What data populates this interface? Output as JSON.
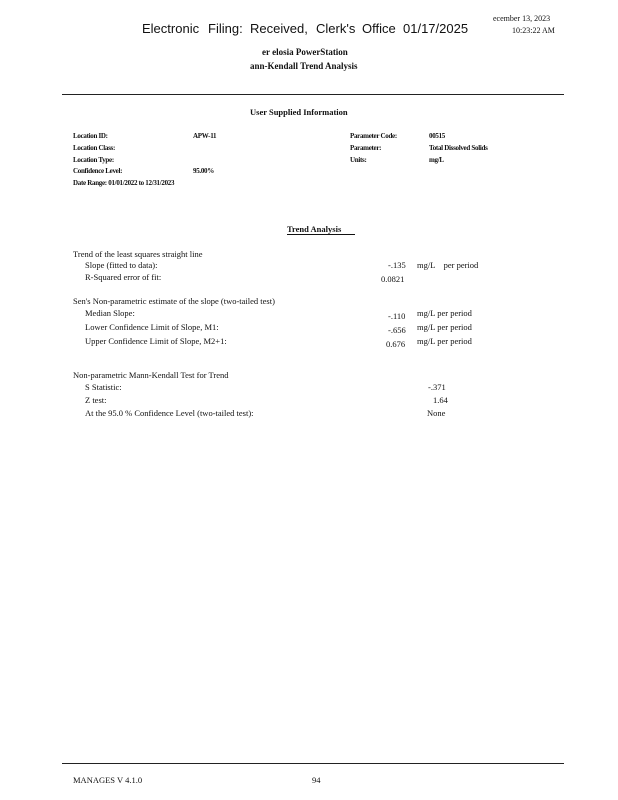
{
  "stamp": {
    "words": [
      "Electronic",
      "Filing:",
      "Received,",
      "Clerk's",
      "Office",
      "01/17/2025"
    ]
  },
  "header": {
    "date": "ecember 13, 2023",
    "time": "10:23:22 AM",
    "title1": "er     elosia PowerStation",
    "title2": "ann-Kendall Trend Analysis"
  },
  "user_info": {
    "heading": "User Supplied Information",
    "location_id_label": "Location ID:",
    "location_id": "APW-11",
    "location_class_label": "Location Class:",
    "location_type_label": "Location Type:",
    "confidence_label": "Confidence Level:",
    "confidence": "95.00%",
    "date_range": "Date Range: 01/01/2022 to 12/31/2023",
    "param_code_label": "Parameter Code:",
    "param_code": "00515",
    "parameter_label": "Parameter:",
    "parameter": "Total Dissolved Solids",
    "units_label": "Units:",
    "units": "mg/L"
  },
  "trend": {
    "heading": "Trend Analysis",
    "ls_title": "Trend of the least squares straight line",
    "slope_label": "Slope (fitted to data):",
    "slope": "-.135",
    "slope_unit": "mg/L    per period",
    "r2_label": "R-Squared error of fit:",
    "r2": "0.0821",
    "sen_title": "Sen's Non-parametric estimate of the slope (two-tailed test)",
    "median_label": "Median Slope:",
    "median": "-.110",
    "median_unit": "mg/L per period",
    "lcl_label": "Lower Confidence Limit of Slope, M1:",
    "lcl": "-.656",
    "lcl_unit": "mg/L per period",
    "ucl_label": "Upper Confidence Limit of Slope, M2+1:",
    "ucl": "0.676",
    "ucl_unit": "mg/L per period",
    "mk_title": "Non-parametric Mann-Kendall Test for Trend",
    "s_label": "S Statistic:",
    "s": "-.371",
    "z_label": "Z test:",
    "z": "1.64",
    "conf_label": "At the 95.0 % Confidence Level (two-tailed test):",
    "result": "None"
  },
  "footer": {
    "version": "MANAGES V 4.1.0",
    "page": "94"
  }
}
